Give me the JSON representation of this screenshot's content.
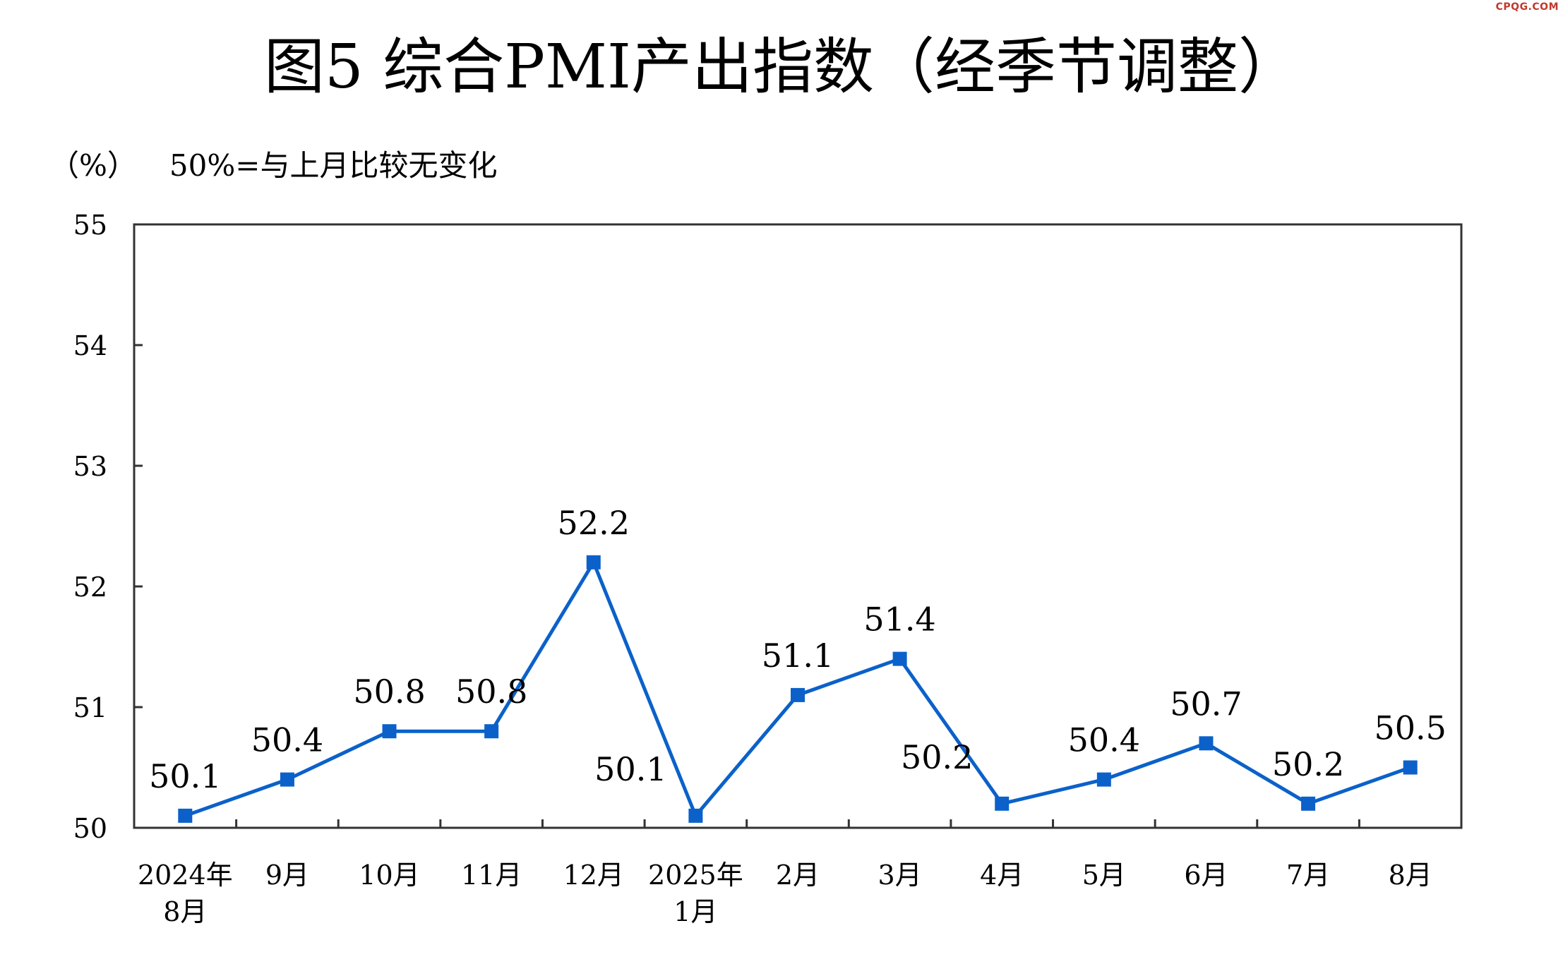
{
  "watermark": "CPQG.COM",
  "chart_data": {
    "type": "line",
    "title": "图5  综合PMI产出指数（经季节调整）",
    "ylabel": "（%）",
    "note": "50%=与上月比较无变化",
    "ylim": [
      50,
      55
    ],
    "yticks": [
      "50",
      "51",
      "52",
      "53",
      "54",
      "55"
    ],
    "categories": [
      [
        "2024年",
        "8月"
      ],
      [
        "9月"
      ],
      [
        "10月"
      ],
      [
        "11月"
      ],
      [
        "12月"
      ],
      [
        "2025年",
        "1月"
      ],
      [
        "2月"
      ],
      [
        "3月"
      ],
      [
        "4月"
      ],
      [
        "5月"
      ],
      [
        "6月"
      ],
      [
        "7月"
      ],
      [
        "8月"
      ]
    ],
    "series": [
      {
        "values": [
          50.1,
          50.4,
          50.8,
          50.8,
          52.2,
          50.1,
          51.1,
          51.4,
          50.2,
          50.4,
          50.7,
          50.2,
          50.5
        ],
        "labels": [
          "50.1",
          "50.4",
          "50.8",
          "50.8",
          "52.2",
          "50.1",
          "51.1",
          "51.4",
          "50.2",
          "50.4",
          "50.7",
          "50.2",
          "50.5"
        ],
        "color": "#0b61c9"
      }
    ],
    "grid": false,
    "legend": "none"
  }
}
